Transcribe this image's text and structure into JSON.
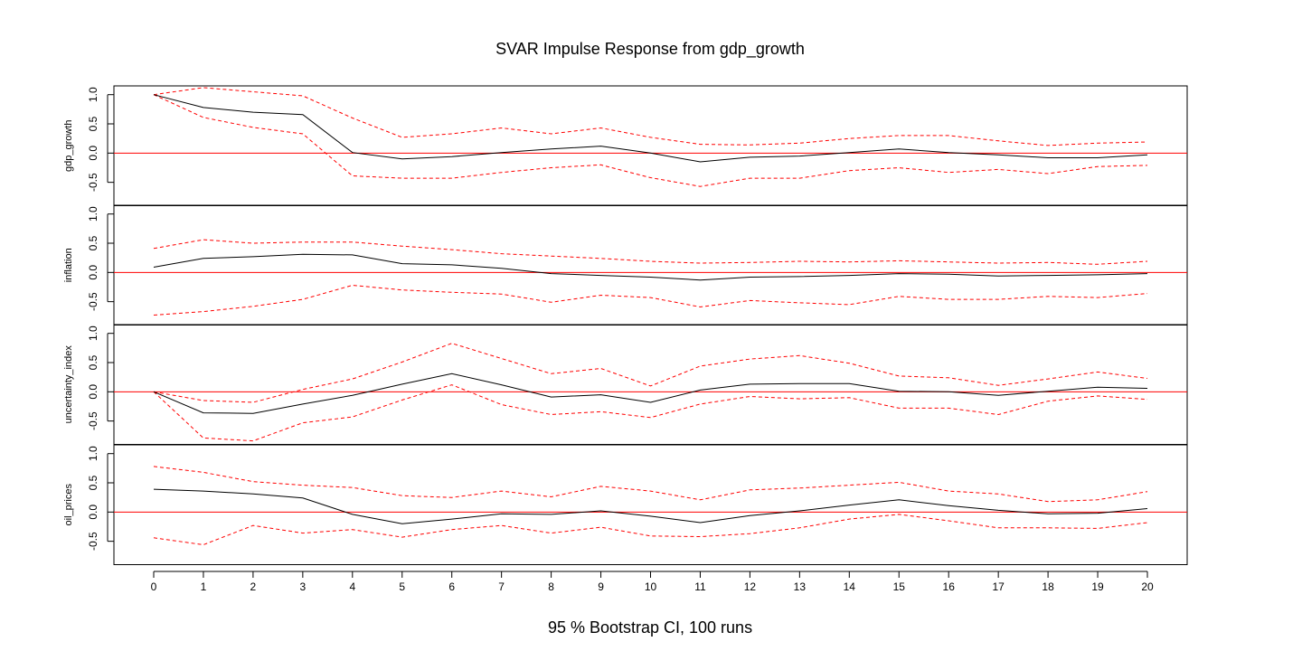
{
  "chart_data": {
    "type": "line",
    "title": "SVAR Impulse Response from gdp_growth",
    "xlabel": "95 % Bootstrap CI,  100 runs",
    "x": [
      0,
      1,
      2,
      3,
      4,
      5,
      6,
      7,
      8,
      9,
      10,
      11,
      12,
      13,
      14,
      15,
      16,
      17,
      18,
      19,
      20
    ],
    "xticks": [
      "0",
      "1",
      "2",
      "3",
      "4",
      "5",
      "6",
      "7",
      "8",
      "9",
      "10",
      "11",
      "12",
      "13",
      "14",
      "15",
      "16",
      "17",
      "18",
      "19",
      "20"
    ],
    "ylim": [
      -0.9,
      1.15
    ],
    "yticks": [
      "-0.5",
      "0.0",
      "0.5",
      "1.0"
    ],
    "colors": {
      "response": "#000000",
      "ci": "#ff0000",
      "zero_line": "#ff0000"
    },
    "panels": [
      {
        "ylabel": "gdp_growth",
        "response": [
          1.0,
          0.78,
          0.7,
          0.66,
          0.01,
          -0.1,
          -0.06,
          0.01,
          0.07,
          0.12,
          0.0,
          -0.15,
          -0.07,
          -0.05,
          0.01,
          0.07,
          0.01,
          -0.03,
          -0.08,
          -0.08,
          -0.03
        ],
        "upper": [
          1.0,
          1.12,
          1.05,
          0.98,
          0.6,
          0.27,
          0.33,
          0.43,
          0.33,
          0.43,
          0.27,
          0.15,
          0.14,
          0.17,
          0.25,
          0.3,
          0.3,
          0.21,
          0.13,
          0.17,
          0.19
        ],
        "lower": [
          1.0,
          0.61,
          0.44,
          0.33,
          -0.39,
          -0.43,
          -0.43,
          -0.33,
          -0.25,
          -0.2,
          -0.42,
          -0.57,
          -0.43,
          -0.43,
          -0.3,
          -0.25,
          -0.33,
          -0.28,
          -0.35,
          -0.23,
          -0.21
        ]
      },
      {
        "ylabel": "inflation",
        "response": [
          0.09,
          0.24,
          0.27,
          0.31,
          0.3,
          0.15,
          0.13,
          0.07,
          -0.02,
          -0.05,
          -0.08,
          -0.13,
          -0.08,
          -0.07,
          -0.05,
          -0.02,
          -0.03,
          -0.06,
          -0.05,
          -0.04,
          -0.02
        ],
        "upper": [
          0.41,
          0.56,
          0.5,
          0.52,
          0.52,
          0.45,
          0.39,
          0.32,
          0.28,
          0.24,
          0.19,
          0.16,
          0.17,
          0.19,
          0.18,
          0.2,
          0.18,
          0.16,
          0.17,
          0.14,
          0.19
        ],
        "lower": [
          -0.73,
          -0.67,
          -0.58,
          -0.46,
          -0.22,
          -0.3,
          -0.34,
          -0.37,
          -0.51,
          -0.39,
          -0.43,
          -0.59,
          -0.48,
          -0.52,
          -0.55,
          -0.41,
          -0.46,
          -0.46,
          -0.41,
          -0.43,
          -0.36
        ]
      },
      {
        "ylabel": "uncertainty_index",
        "response": [
          0.0,
          -0.36,
          -0.37,
          -0.21,
          -0.06,
          0.13,
          0.31,
          0.12,
          -0.09,
          -0.05,
          -0.18,
          0.03,
          0.13,
          0.14,
          0.14,
          0.01,
          0.0,
          -0.06,
          0.01,
          0.08,
          0.06
        ],
        "upper": [
          0.0,
          -0.15,
          -0.18,
          0.04,
          0.22,
          0.51,
          0.83,
          0.57,
          0.31,
          0.4,
          0.1,
          0.44,
          0.56,
          0.62,
          0.49,
          0.27,
          0.24,
          0.11,
          0.22,
          0.34,
          0.23
        ],
        "lower": [
          0.0,
          -0.79,
          -0.84,
          -0.53,
          -0.43,
          -0.14,
          0.12,
          -0.22,
          -0.39,
          -0.34,
          -0.44,
          -0.21,
          -0.08,
          -0.12,
          -0.1,
          -0.28,
          -0.28,
          -0.39,
          -0.16,
          -0.07,
          -0.13
        ]
      },
      {
        "ylabel": "oil_prices",
        "response": [
          0.39,
          0.36,
          0.31,
          0.24,
          -0.04,
          -0.2,
          -0.12,
          -0.03,
          -0.04,
          0.02,
          -0.07,
          -0.18,
          -0.06,
          0.02,
          0.12,
          0.21,
          0.11,
          0.03,
          -0.03,
          -0.02,
          0.06
        ],
        "upper": [
          0.78,
          0.68,
          0.52,
          0.46,
          0.42,
          0.28,
          0.25,
          0.36,
          0.26,
          0.44,
          0.36,
          0.21,
          0.38,
          0.41,
          0.46,
          0.51,
          0.36,
          0.31,
          0.18,
          0.21,
          0.35
        ],
        "lower": [
          -0.44,
          -0.56,
          -0.23,
          -0.36,
          -0.3,
          -0.43,
          -0.3,
          -0.23,
          -0.36,
          -0.26,
          -0.41,
          -0.42,
          -0.37,
          -0.27,
          -0.12,
          -0.04,
          -0.15,
          -0.27,
          -0.27,
          -0.28,
          -0.18
        ]
      }
    ]
  }
}
